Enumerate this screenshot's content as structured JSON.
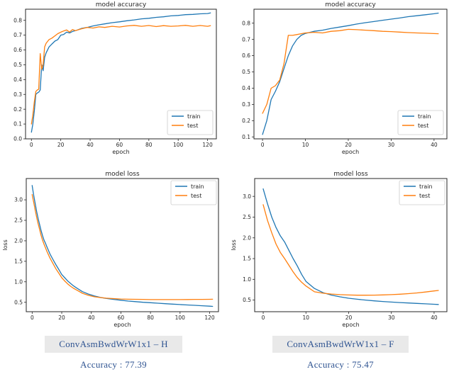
{
  "colors": {
    "train_line": "#1f77b4",
    "test_line": "#ff7f0e",
    "axis_ink": "#262626",
    "legend_border": "#cccccc",
    "caption_text": "#2e5391",
    "caption_background": "#e9e9e9"
  },
  "chart_data": [
    {
      "id": "accuracy-model-h",
      "type": "line",
      "title": "model accuracy",
      "xlabel": "epoch",
      "ylabel": "",
      "xlim": [
        -4,
        126
      ],
      "ylim": [
        0.0,
        0.875
      ],
      "xticks": [
        0,
        20,
        40,
        60,
        80,
        100,
        120
      ],
      "xtick_labels": [
        "0",
        "20",
        "40",
        "60",
        "80",
        "100",
        "120"
      ],
      "yticks": [
        0.0,
        0.1,
        0.2,
        0.3,
        0.4,
        0.5,
        0.6,
        0.7,
        0.8
      ],
      "ytick_labels": [
        "0.0",
        "0.1",
        "0.2",
        "0.3",
        "0.4",
        "0.5",
        "0.6",
        "0.7",
        "0.8"
      ],
      "grid": false,
      "legend_position": "lower right",
      "series": [
        {
          "name": "train",
          "color": "#1f77b4",
          "x": [
            0,
            1,
            2,
            3,
            4,
            5,
            6,
            7,
            8,
            9,
            10,
            12,
            14,
            16,
            18,
            20,
            22,
            24,
            26,
            28,
            30,
            34,
            38,
            42,
            46,
            50,
            55,
            60,
            65,
            70,
            75,
            80,
            85,
            90,
            95,
            100,
            105,
            110,
            115,
            120,
            122
          ],
          "y": [
            0.045,
            0.1,
            0.19,
            0.3,
            0.31,
            0.315,
            0.33,
            0.5,
            0.46,
            0.55,
            0.58,
            0.62,
            0.64,
            0.66,
            0.67,
            0.7,
            0.705,
            0.72,
            0.715,
            0.725,
            0.73,
            0.745,
            0.752,
            0.762,
            0.77,
            0.776,
            0.784,
            0.79,
            0.797,
            0.803,
            0.81,
            0.814,
            0.82,
            0.824,
            0.83,
            0.833,
            0.838,
            0.84,
            0.844,
            0.846,
            0.85
          ]
        },
        {
          "name": "test",
          "color": "#ff7f0e",
          "x": [
            0,
            1,
            2,
            3,
            4,
            5,
            6,
            7,
            8,
            9,
            10,
            12,
            14,
            16,
            18,
            20,
            22,
            24,
            26,
            28,
            30,
            34,
            38,
            42,
            46,
            50,
            55,
            60,
            65,
            70,
            75,
            80,
            85,
            90,
            95,
            100,
            105,
            110,
            115,
            120,
            122
          ],
          "y": [
            0.1,
            0.16,
            0.25,
            0.32,
            0.33,
            0.335,
            0.575,
            0.47,
            0.5,
            0.62,
            0.645,
            0.67,
            0.68,
            0.695,
            0.71,
            0.72,
            0.728,
            0.735,
            0.72,
            0.738,
            0.73,
            0.742,
            0.752,
            0.748,
            0.756,
            0.752,
            0.76,
            0.755,
            0.762,
            0.766,
            0.76,
            0.765,
            0.758,
            0.764,
            0.76,
            0.762,
            0.766,
            0.76,
            0.765,
            0.76,
            0.764
          ]
        }
      ]
    },
    {
      "id": "accuracy-model-f",
      "type": "line",
      "title": "model accuracy",
      "xlabel": "epoch",
      "ylabel": "",
      "xlim": [
        -2,
        43
      ],
      "ylim": [
        0.088,
        0.886
      ],
      "xticks": [
        0,
        10,
        20,
        30,
        40
      ],
      "xtick_labels": [
        "0",
        "10",
        "20",
        "30",
        "40"
      ],
      "yticks": [
        0.1,
        0.2,
        0.3,
        0.4,
        0.5,
        0.6,
        0.7,
        0.8
      ],
      "ytick_labels": [
        "0.1",
        "0.2",
        "0.3",
        "0.4",
        "0.5",
        "0.6",
        "0.7",
        "0.8"
      ],
      "grid": false,
      "legend_position": "lower right",
      "series": [
        {
          "name": "train",
          "color": "#1f77b4",
          "x": [
            0,
            1,
            2,
            3,
            4,
            5,
            6,
            7,
            8,
            9,
            10,
            12,
            14,
            16,
            18,
            20,
            22,
            24,
            26,
            28,
            30,
            32,
            34,
            36,
            38,
            40,
            41
          ],
          "y": [
            0.115,
            0.2,
            0.33,
            0.38,
            0.44,
            0.52,
            0.6,
            0.66,
            0.7,
            0.725,
            0.737,
            0.75,
            0.757,
            0.768,
            0.776,
            0.785,
            0.795,
            0.803,
            0.81,
            0.818,
            0.825,
            0.832,
            0.84,
            0.846,
            0.852,
            0.858,
            0.862
          ]
        },
        {
          "name": "test",
          "color": "#ff7f0e",
          "x": [
            0,
            1,
            2,
            3,
            4,
            5,
            6,
            7,
            8,
            9,
            10,
            12,
            14,
            16,
            18,
            20,
            22,
            24,
            26,
            28,
            30,
            32,
            34,
            36,
            38,
            40,
            41
          ],
          "y": [
            0.245,
            0.3,
            0.4,
            0.415,
            0.45,
            0.55,
            0.725,
            0.725,
            0.73,
            0.735,
            0.74,
            0.744,
            0.74,
            0.75,
            0.754,
            0.762,
            0.76,
            0.757,
            0.754,
            0.75,
            0.748,
            0.745,
            0.742,
            0.74,
            0.738,
            0.736,
            0.735
          ]
        }
      ]
    },
    {
      "id": "loss-model-h",
      "type": "line",
      "title": "model loss",
      "xlabel": "epoch",
      "ylabel": "loss",
      "xlim": [
        -4,
        126
      ],
      "ylim": [
        0.27,
        3.52
      ],
      "xticks": [
        0,
        20,
        40,
        60,
        80,
        100,
        120
      ],
      "xtick_labels": [
        "0",
        "20",
        "40",
        "60",
        "80",
        "100",
        "120"
      ],
      "yticks": [
        0.5,
        1.0,
        1.5,
        2.0,
        2.5,
        3.0
      ],
      "ytick_labels": [
        "0.5",
        "1.0",
        "1.5",
        "2.0",
        "2.5",
        "3.0"
      ],
      "grid": false,
      "legend_position": "upper right",
      "series": [
        {
          "name": "train",
          "color": "#1f77b4",
          "x": [
            0,
            1,
            2,
            3,
            4,
            5,
            6,
            7,
            8,
            9,
            10,
            12,
            14,
            16,
            18,
            20,
            22,
            24,
            26,
            28,
            30,
            34,
            38,
            42,
            46,
            50,
            55,
            60,
            65,
            70,
            75,
            80,
            85,
            90,
            95,
            100,
            105,
            110,
            115,
            120,
            122
          ],
          "y": [
            3.35,
            3.12,
            2.92,
            2.72,
            2.55,
            2.4,
            2.26,
            2.13,
            2.02,
            1.94,
            1.85,
            1.68,
            1.55,
            1.42,
            1.3,
            1.18,
            1.1,
            1.02,
            0.96,
            0.9,
            0.85,
            0.76,
            0.7,
            0.655,
            0.62,
            0.595,
            0.57,
            0.55,
            0.53,
            0.515,
            0.5,
            0.49,
            0.477,
            0.465,
            0.455,
            0.445,
            0.435,
            0.425,
            0.415,
            0.405,
            0.4
          ]
        },
        {
          "name": "test",
          "color": "#ff7f0e",
          "x": [
            0,
            1,
            2,
            3,
            4,
            5,
            6,
            7,
            8,
            9,
            10,
            12,
            14,
            16,
            18,
            20,
            22,
            24,
            26,
            28,
            30,
            34,
            38,
            42,
            46,
            50,
            55,
            60,
            65,
            70,
            75,
            80,
            85,
            90,
            95,
            100,
            105,
            110,
            115,
            120,
            122
          ],
          "y": [
            3.13,
            2.95,
            2.76,
            2.58,
            2.42,
            2.28,
            2.14,
            2.02,
            1.92,
            1.83,
            1.74,
            1.58,
            1.45,
            1.32,
            1.21,
            1.1,
            1.02,
            0.95,
            0.89,
            0.84,
            0.8,
            0.72,
            0.67,
            0.635,
            0.615,
            0.6,
            0.59,
            0.58,
            0.575,
            0.572,
            0.57,
            0.566,
            0.565,
            0.565,
            0.565,
            0.566,
            0.567,
            0.57,
            0.57,
            0.572,
            0.574
          ]
        }
      ]
    },
    {
      "id": "loss-model-f",
      "type": "line",
      "title": "model loss",
      "xlabel": "epoch",
      "ylabel": "loss",
      "xlim": [
        -2,
        43
      ],
      "ylim": [
        0.22,
        3.43
      ],
      "xticks": [
        0,
        10,
        20,
        30,
        40
      ],
      "xtick_labels": [
        "0",
        "10",
        "20",
        "30",
        "40"
      ],
      "yticks": [
        0.5,
        1.0,
        1.5,
        2.0,
        2.5,
        3.0
      ],
      "ytick_labels": [
        "0.5",
        "1.0",
        "1.5",
        "2.0",
        "2.5",
        "3.0"
      ],
      "grid": false,
      "legend_position": "upper right",
      "series": [
        {
          "name": "train",
          "color": "#1f77b4",
          "x": [
            0,
            1,
            2,
            3,
            4,
            5,
            6,
            7,
            8,
            9,
            10,
            12,
            14,
            16,
            18,
            20,
            22,
            24,
            26,
            28,
            30,
            32,
            34,
            36,
            38,
            40,
            41
          ],
          "y": [
            3.18,
            2.82,
            2.5,
            2.25,
            2.05,
            1.9,
            1.7,
            1.5,
            1.32,
            1.12,
            0.95,
            0.78,
            0.68,
            0.62,
            0.578,
            0.545,
            0.52,
            0.5,
            0.482,
            0.466,
            0.452,
            0.44,
            0.43,
            0.42,
            0.41,
            0.4,
            0.395
          ]
        },
        {
          "name": "test",
          "color": "#ff7f0e",
          "x": [
            0,
            1,
            2,
            3,
            4,
            5,
            6,
            7,
            8,
            9,
            10,
            12,
            14,
            16,
            18,
            20,
            22,
            24,
            26,
            28,
            30,
            32,
            34,
            36,
            38,
            40,
            41
          ],
          "y": [
            2.8,
            2.42,
            2.12,
            1.85,
            1.65,
            1.5,
            1.34,
            1.18,
            1.04,
            0.93,
            0.84,
            0.7,
            0.665,
            0.645,
            0.632,
            0.623,
            0.618,
            0.617,
            0.62,
            0.625,
            0.632,
            0.642,
            0.655,
            0.672,
            0.695,
            0.72,
            0.732
          ]
        }
      ]
    }
  ],
  "captions": [
    {
      "label": "ConvAsmBwdWrW1x1 – H",
      "accuracy": "Accuracy : 77.39"
    },
    {
      "label": "ConvAsmBwdWrW1x1 – F",
      "accuracy": "Accuracy : 75.47"
    }
  ]
}
